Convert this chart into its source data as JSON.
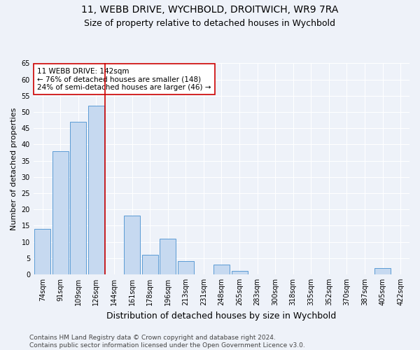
{
  "title1": "11, WEBB DRIVE, WYCHBOLD, DROITWICH, WR9 7RA",
  "title2": "Size of property relative to detached houses in Wychbold",
  "xlabel": "Distribution of detached houses by size in Wychbold",
  "ylabel": "Number of detached properties",
  "categories": [
    "74sqm",
    "91sqm",
    "109sqm",
    "126sqm",
    "144sqm",
    "161sqm",
    "178sqm",
    "196sqm",
    "213sqm",
    "231sqm",
    "248sqm",
    "265sqm",
    "283sqm",
    "300sqm",
    "318sqm",
    "335sqm",
    "352sqm",
    "370sqm",
    "387sqm",
    "405sqm",
    "422sqm"
  ],
  "values": [
    14,
    38,
    47,
    52,
    0,
    18,
    6,
    11,
    4,
    0,
    3,
    1,
    0,
    0,
    0,
    0,
    0,
    0,
    0,
    2,
    0
  ],
  "bar_color": "#c6d9f0",
  "bar_edge_color": "#5b9bd5",
  "vline_color": "#cc0000",
  "annotation_text": "11 WEBB DRIVE: 142sqm\n← 76% of detached houses are smaller (148)\n24% of semi-detached houses are larger (46) →",
  "annotation_box_color": "#ffffff",
  "annotation_box_edge": "#cc0000",
  "ylim": [
    0,
    65
  ],
  "yticks": [
    0,
    5,
    10,
    15,
    20,
    25,
    30,
    35,
    40,
    45,
    50,
    55,
    60,
    65
  ],
  "footnote": "Contains HM Land Registry data © Crown copyright and database right 2024.\nContains public sector information licensed under the Open Government Licence v3.0.",
  "bg_color": "#eef2f9",
  "grid_color": "#ffffff",
  "title1_fontsize": 10,
  "title2_fontsize": 9,
  "xlabel_fontsize": 9,
  "ylabel_fontsize": 8,
  "tick_fontsize": 7,
  "footnote_fontsize": 6.5,
  "annot_fontsize": 7.5
}
